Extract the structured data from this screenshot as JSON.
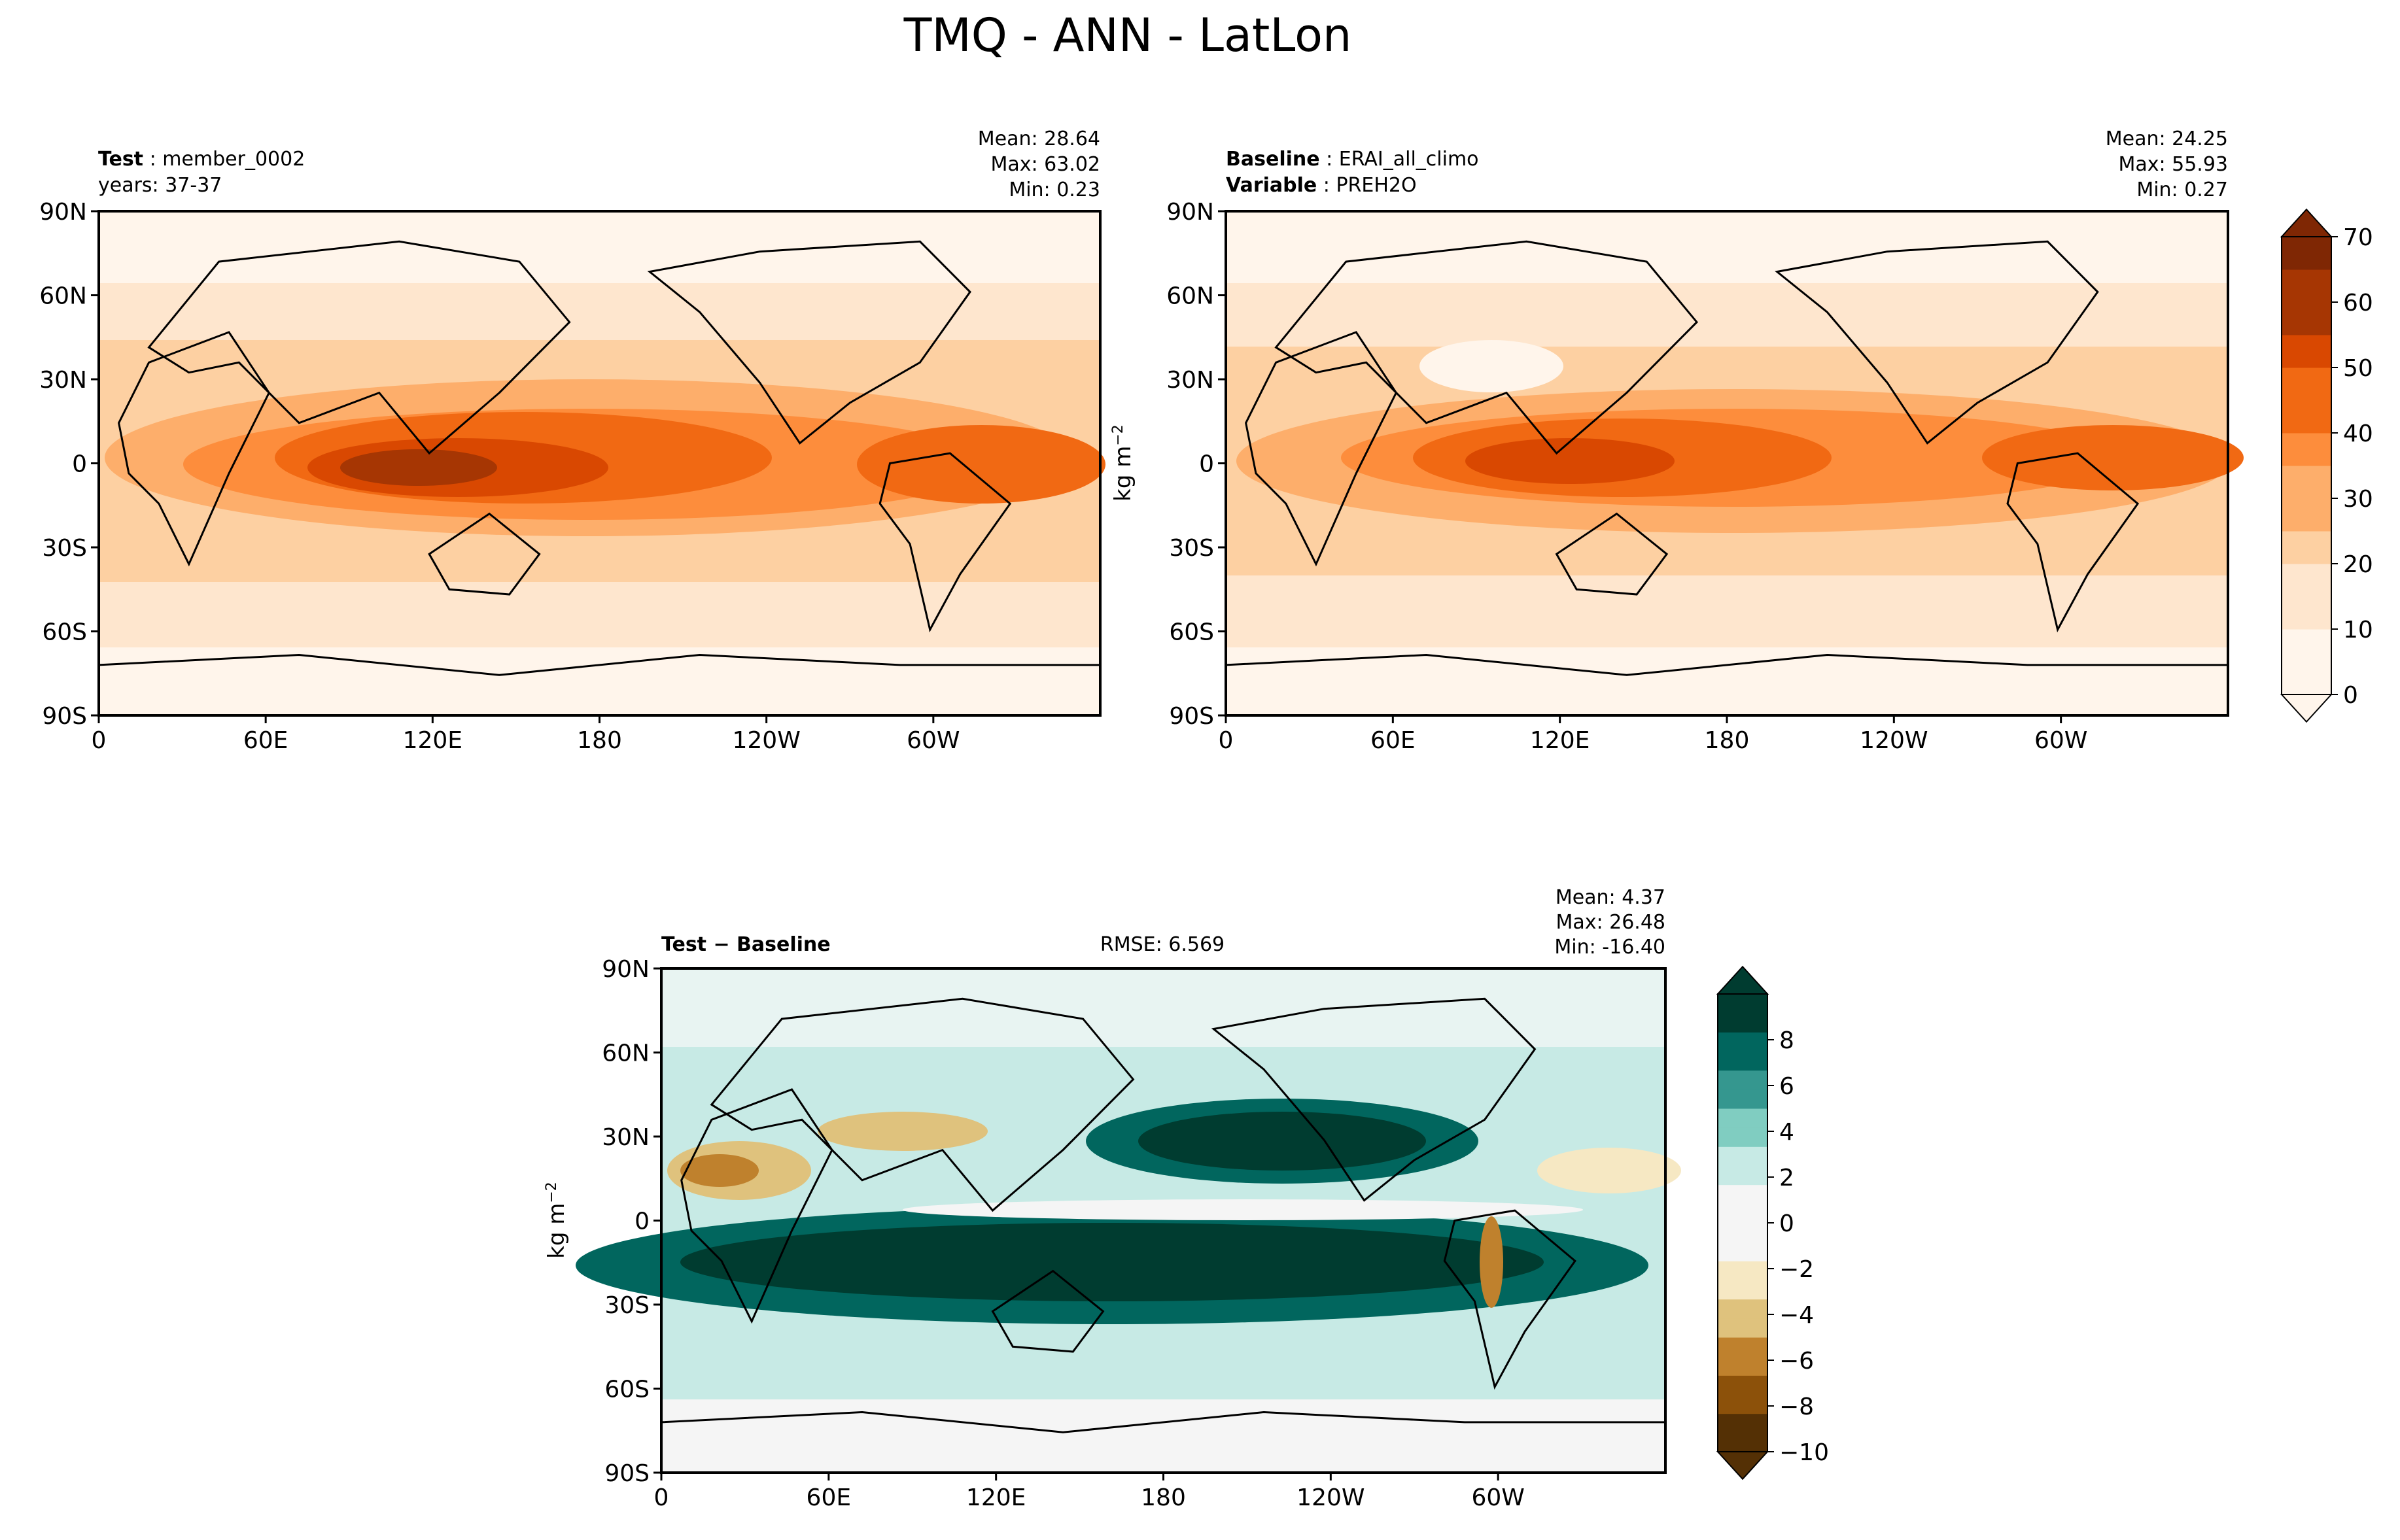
{
  "title": "TMQ - ANN - LatLon",
  "colors": {
    "sequential": [
      "#fff5eb",
      "#fee6ce",
      "#fdd0a2",
      "#fdae6b",
      "#fd8d3c",
      "#f16913",
      "#d94801",
      "#a63603",
      "#7f2704"
    ],
    "diverging_neg": [
      "#f5f5f5",
      "#f6e8c3",
      "#dfc27d",
      "#bf812d",
      "#8c510a",
      "#543005"
    ],
    "diverging_pos": [
      "#f5f5f5",
      "#c7eae5",
      "#80cdc1",
      "#35978f",
      "#01665e",
      "#003c30"
    ],
    "coast": "#000000"
  },
  "chart_data": [
    {
      "type": "heatmap",
      "panel": "test",
      "header": {
        "label_bold": "Test",
        "label_value": "member_0002",
        "line2": "years: 37-37"
      },
      "stats": {
        "mean": "Mean: 28.64",
        "max": "Max: 63.02",
        "min": "Min:  0.23"
      },
      "xlabel": "",
      "ylabel": "",
      "xlim": [
        0,
        360
      ],
      "ylim": [
        -90,
        90
      ],
      "xticks": [
        "0",
        "60E",
        "120E",
        "180",
        "120W",
        "60W"
      ],
      "yticks": [
        "90S",
        "60S",
        "30S",
        "0",
        "30N",
        "60N",
        "90N"
      ],
      "values_summary": {
        "mean": 28.64,
        "max": 63.02,
        "min": 0.23
      }
    },
    {
      "type": "heatmap",
      "panel": "baseline",
      "header": {
        "label_bold": "Baseline",
        "label_value": "ERAI_all_climo",
        "label2_bold": "Variable",
        "label2_value": "PREH2O"
      },
      "stats": {
        "mean": "Mean: 24.25",
        "max": "Max: 55.93",
        "min": "Min:  0.27"
      },
      "xlabel": "",
      "ylabel": "",
      "xlim": [
        0,
        360
      ],
      "ylim": [
        -90,
        90
      ],
      "xticks": [
        "0",
        "60E",
        "120E",
        "180",
        "120W",
        "60W"
      ],
      "yticks": [
        "90S",
        "60S",
        "30S",
        "0",
        "30N",
        "60N",
        "90N"
      ],
      "colorbar": {
        "label": "kg m",
        "label_sup": "−2",
        "ticks": [
          "0",
          "10",
          "20",
          "30",
          "40",
          "50",
          "60",
          "70"
        ],
        "range": [
          0,
          70
        ]
      },
      "values_summary": {
        "mean": 24.25,
        "max": 55.93,
        "min": 0.27
      }
    },
    {
      "type": "heatmap",
      "panel": "diff",
      "header": {
        "label_bold": "Test − Baseline",
        "rmse": "RMSE: 6.569"
      },
      "stats": {
        "mean": "Mean:  4.37",
        "max": "Max: 26.48",
        "min": "Min: -16.40"
      },
      "xlabel": "",
      "ylabel": "kg m",
      "ylabel_sup": "−2",
      "xlim": [
        0,
        360
      ],
      "ylim": [
        -90,
        90
      ],
      "xticks": [
        "0",
        "60E",
        "120E",
        "180",
        "120W",
        "60W"
      ],
      "yticks": [
        "90S",
        "60S",
        "30S",
        "0",
        "30N",
        "60N",
        "90N"
      ],
      "colorbar": {
        "ticks": [
          "−10",
          "−8",
          "−6",
          "−4",
          "−2",
          "0",
          "2",
          "4",
          "6",
          "8"
        ],
        "range": [
          -10,
          10
        ]
      },
      "values_summary": {
        "mean": 4.37,
        "max": 26.48,
        "min": -16.4,
        "rmse": 6.569
      }
    }
  ]
}
